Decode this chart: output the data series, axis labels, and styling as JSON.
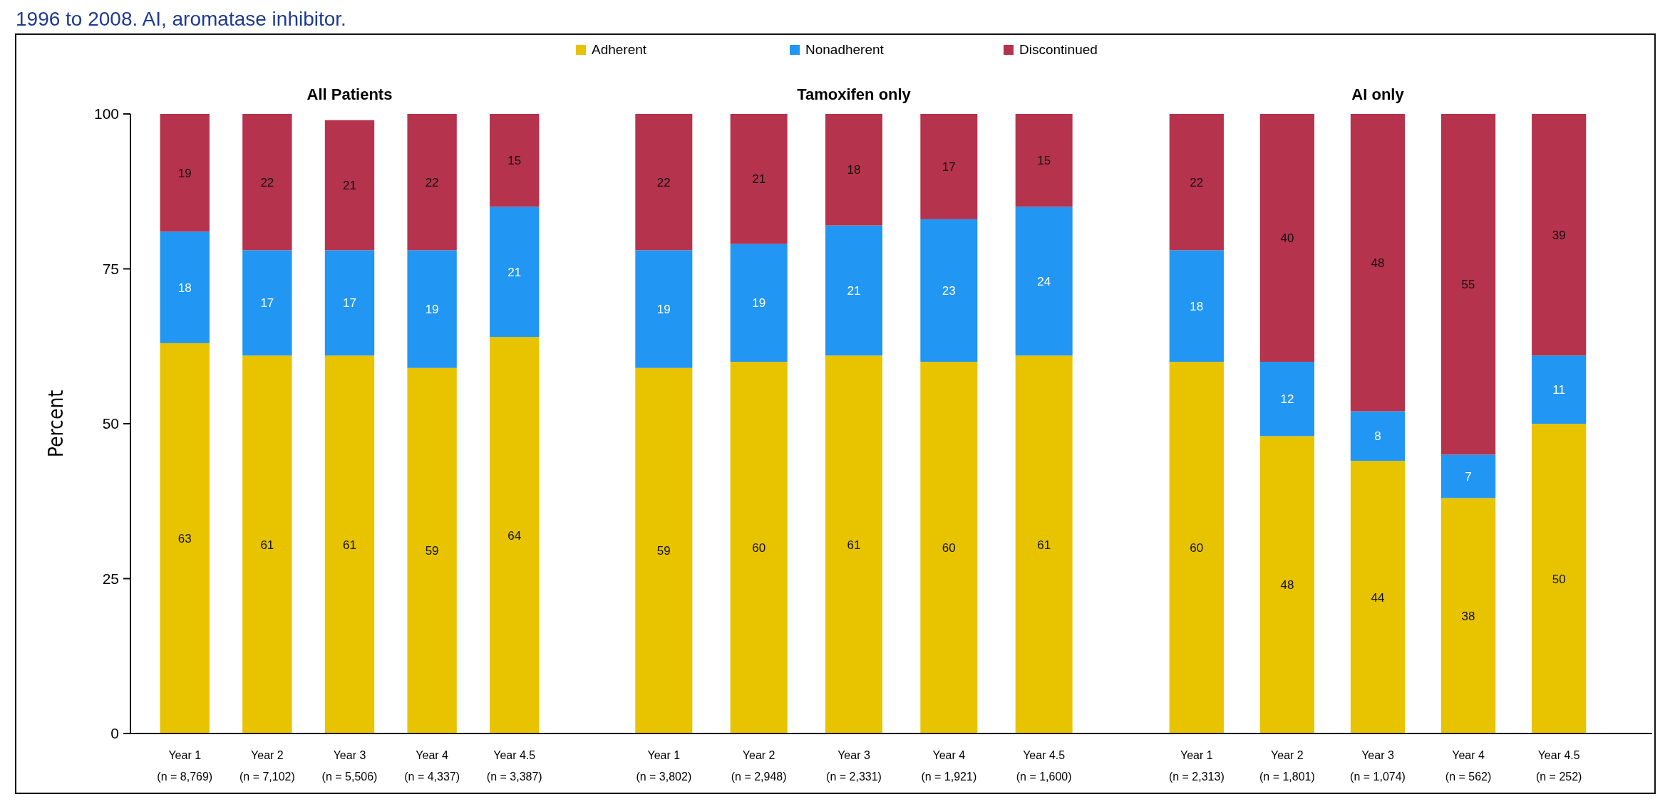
{
  "chart_data": [
    {
      "type": "bar",
      "title": "All Patients",
      "ylabel": "Percent",
      "annotations": [
        "1996 to 2008. AI, aromatase inhibitor."
      ],
      "legend": "top",
      "stacked": true,
      "data_labels": true,
      "ylim": [
        0,
        100
      ],
      "yticks": [
        0,
        25,
        50,
        75,
        100
      ],
      "categories": [
        "Year 1\n(n = 8,769)",
        "Year 2\n(n = 7,102)",
        "Year 3\n(n = 5,506)",
        "Year 4\n(n = 4,337)",
        "Year 4.5\n(n = 3,387)"
      ],
      "series": [
        {
          "name": "Adherent",
          "color": "#e8c300",
          "values": [
            63,
            61,
            61,
            59,
            64
          ]
        },
        {
          "name": "Nonadherent",
          "color": "#2196f3",
          "values": [
            18,
            17,
            17,
            19,
            21
          ]
        },
        {
          "name": "Discontinued",
          "color": "#b5334c",
          "values": [
            19,
            22,
            21,
            22,
            15
          ]
        }
      ]
    },
    {
      "type": "bar",
      "title": "Tamoxifen only",
      "stacked": true,
      "data_labels": true,
      "tick_labels": "x",
      "ylim": [
        0,
        100
      ],
      "categories": [
        "Year 1\n(n = 3,802)",
        "Year 2\n(n = 2,948)",
        "Year 3\n(n = 2,331)",
        "Year 4\n(n = 1,921)",
        "Year 4.5\n(n = 1,600)"
      ],
      "series": [
        {
          "color": "#e8c300",
          "values": [
            59,
            60,
            61,
            60,
            61
          ]
        },
        {
          "color": "#2196f3",
          "values": [
            19,
            19,
            21,
            23,
            24
          ]
        },
        {
          "color": "#b5334c",
          "values": [
            22,
            21,
            18,
            17,
            15
          ]
        }
      ]
    },
    {
      "type": "bar",
      "title": "AI only",
      "stacked": true,
      "data_labels": true,
      "tick_labels": "x",
      "ylim": [
        0,
        100
      ],
      "categories": [
        "Year 1\n(n = 2,313)",
        "Year 2\n(n = 1,801)",
        "Year 3\n(n = 1,074)",
        "Year 4\n(n = 562)",
        "Year 4.5\n(n = 252)"
      ],
      "series": [
        {
          "color": "#e8c300",
          "values": [
            60,
            48,
            44,
            38,
            50
          ]
        },
        {
          "color": "#2196f3",
          "values": [
            18,
            12,
            8,
            7,
            11
          ]
        },
        {
          "color": "#b5334c",
          "values": [
            22,
            40,
            48,
            55,
            39
          ]
        }
      ]
    }
  ]
}
